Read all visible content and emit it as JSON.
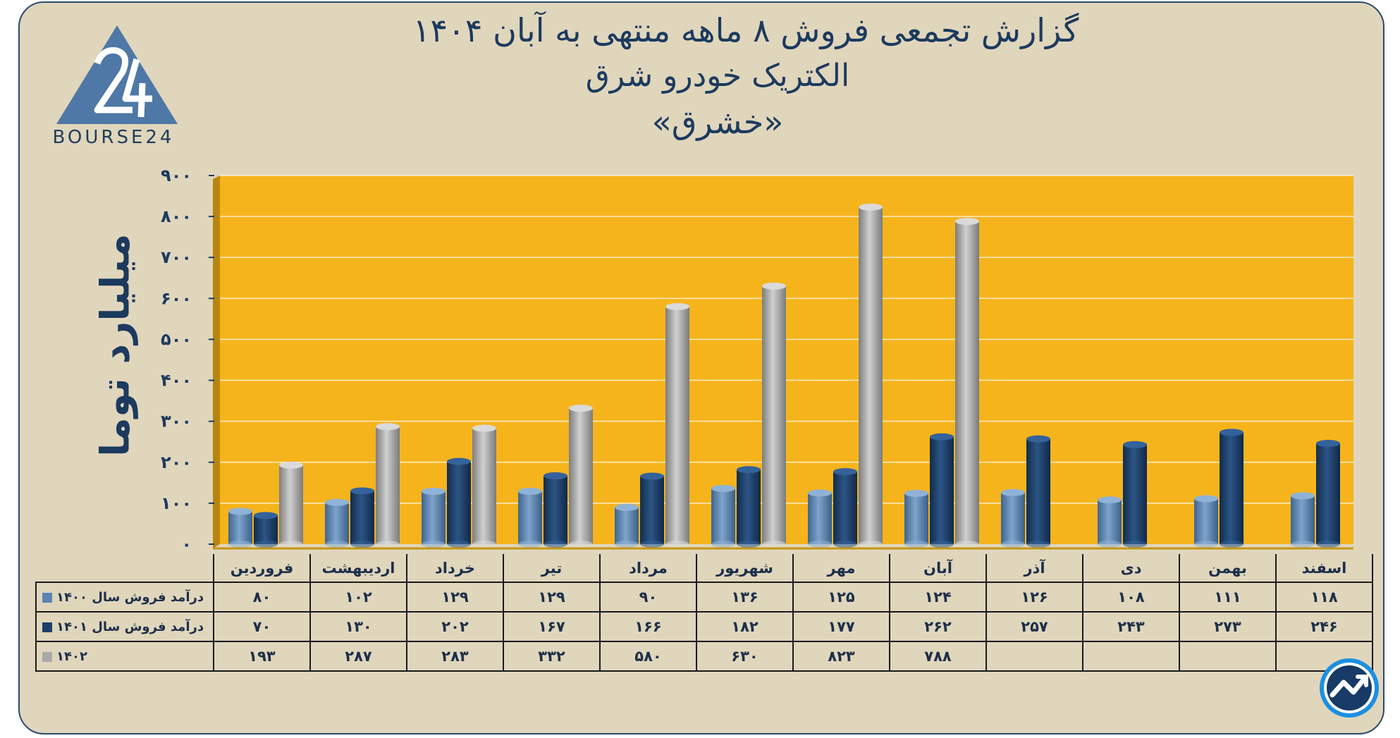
{
  "header": {
    "title_line1": "گزارش تجمعی فروش ۸ ماهه منتهی به آبان ۱۴۰۴",
    "title_line2": "الکتریک خودرو شرق",
    "title_line3": "«خشرق»"
  },
  "brand": {
    "logo_text": "BOURSE24",
    "logo_icon": "bourse24-triangle-logo",
    "badge_icon": "trend-arrow-badge-icon"
  },
  "colors": {
    "plot_bg": "#f6b41c",
    "card_bg": "#e0d6bc",
    "title": "#1c3a5e",
    "series_1400": "#5b84b1",
    "series_1401": "#1d3f69",
    "series_1402": "#a9a9a9"
  },
  "chart_data": {
    "type": "bar",
    "title": "گزارش تجمعی فروش ۸ ماهه منتهی به آبان ۱۴۰۴",
    "ylabel": "میلیارد توما",
    "xlabel": "",
    "ylim": [
      0,
      900
    ],
    "yticks": [
      0,
      100,
      200,
      300,
      400,
      500,
      600,
      700,
      800,
      900
    ],
    "ytick_labels": [
      "۰",
      "۱۰۰",
      "۲۰۰",
      "۳۰۰",
      "۴۰۰",
      "۵۰۰",
      "۶۰۰",
      "۷۰۰",
      "۸۰۰",
      "۹۰۰"
    ],
    "grid": true,
    "categories": [
      "فروردین",
      "اردیبهشت",
      "خرداد",
      "تیر",
      "مرداد",
      "شهریور",
      "مهر",
      "آبان",
      "آذر",
      "دی",
      "بهمن",
      "اسفند"
    ],
    "series": [
      {
        "name": "درآمد فروش سال ۱۴۰۰",
        "values": [
          80,
          102,
          129,
          129,
          90,
          136,
          125,
          124,
          126,
          108,
          111,
          118
        ],
        "labels": [
          "۸۰",
          "۱۰۲",
          "۱۲۹",
          "۱۲۹",
          "۹۰",
          "۱۳۶",
          "۱۲۵",
          "۱۲۴",
          "۱۲۶",
          "۱۰۸",
          "۱۱۱",
          "۱۱۸"
        ]
      },
      {
        "name": "درآمد فروش سال ۱۴۰۱",
        "values": [
          70,
          130,
          202,
          167,
          166,
          182,
          177,
          262,
          257,
          243,
          273,
          246
        ],
        "labels": [
          "۷۰",
          "۱۳۰",
          "۲۰۲",
          "۱۶۷",
          "۱۶۶",
          "۱۸۲",
          "۱۷۷",
          "۲۶۲",
          "۲۵۷",
          "۲۴۳",
          "۲۷۳",
          "۲۴۶"
        ]
      },
      {
        "name": "۱۴۰۲",
        "values": [
          193,
          287,
          283,
          332,
          580,
          630,
          823,
          788,
          null,
          null,
          null,
          null
        ],
        "labels": [
          "۱۹۳",
          "۲۸۷",
          "۲۸۳",
          "۳۳۲",
          "۵۸۰",
          "۶۳۰",
          "۸۲۳",
          "۷۸۸",
          "",
          "",
          "",
          ""
        ]
      }
    ]
  }
}
